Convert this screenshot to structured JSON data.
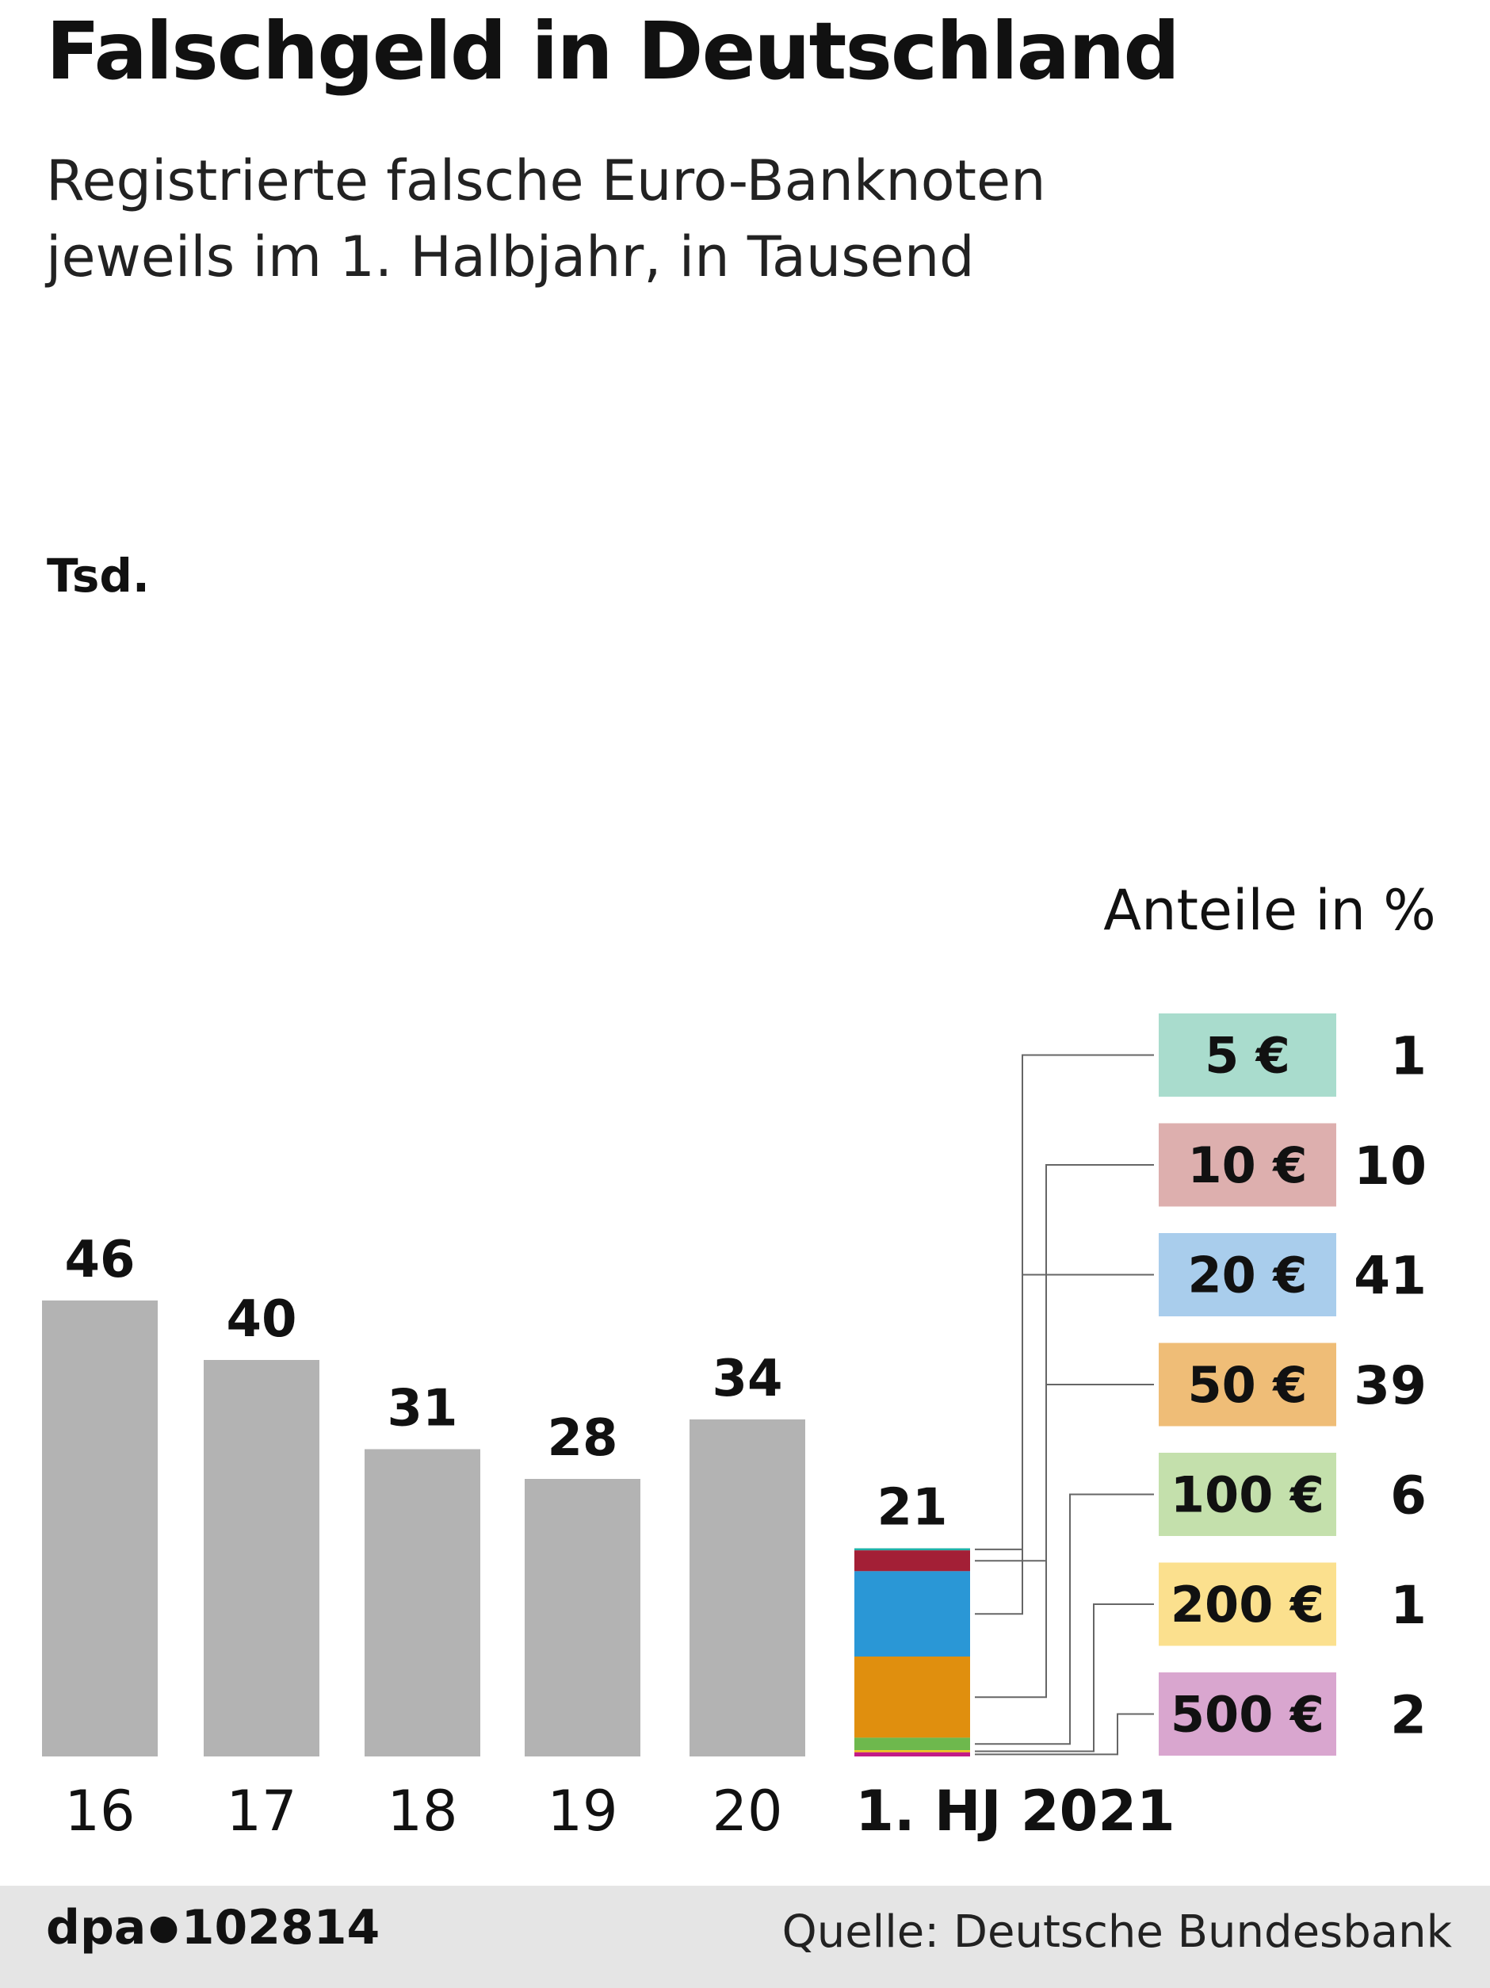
{
  "header": {
    "title": "Falschgeld in Deutschland",
    "subtitle_line1": "Registrierte falsche Euro-Banknoten",
    "subtitle_line2": "jeweils im 1. Halbjahr, in Tausend"
  },
  "footer": {
    "agency": "dpa",
    "id": "102814",
    "source": "Quelle: Deutsche Bundesbank"
  },
  "chart_data": [
    {
      "type": "bar",
      "categories": [
        "16",
        "17",
        "18",
        "19",
        "20",
        "1. HJ 2021"
      ],
      "values": [
        46,
        40,
        31,
        28,
        34,
        21
      ],
      "value_labels": [
        "46",
        "40",
        "31",
        "28",
        "34",
        "21"
      ],
      "unit_label": "Tsd.",
      "ylim": [
        0,
        46
      ],
      "bar_color": "#b3b3b3",
      "grid": false
    },
    {
      "type": "bar",
      "stacked": true,
      "category": "1. HJ 2021",
      "title": "Anteile in %",
      "series": [
        {
          "name": "5 €",
          "value": 1,
          "label": "1",
          "color": "#1fb0a8",
          "legend_color": "#a9dccd"
        },
        {
          "name": "10 €",
          "value": 10,
          "label": "10",
          "color": "#a31f36",
          "legend_color": "#ddafae"
        },
        {
          "name": "20 €",
          "value": 41,
          "label": "41",
          "color": "#2a97d6",
          "legend_color": "#a9cdec"
        },
        {
          "name": "50 €",
          "value": 39,
          "label": "39",
          "color": "#e08f0e",
          "legend_color": "#efbd77"
        },
        {
          "name": "100 €",
          "value": 6,
          "label": "6",
          "color": "#6eb84d",
          "legend_color": "#c4e0ac"
        },
        {
          "name": "200 €",
          "value": 1,
          "label": "1",
          "color": "#f0c419",
          "legend_color": "#fbe08e"
        },
        {
          "name": "500 €",
          "value": 2,
          "label": "2",
          "color": "#c21b87",
          "legend_color": "#d9a6cf"
        }
      ]
    }
  ]
}
